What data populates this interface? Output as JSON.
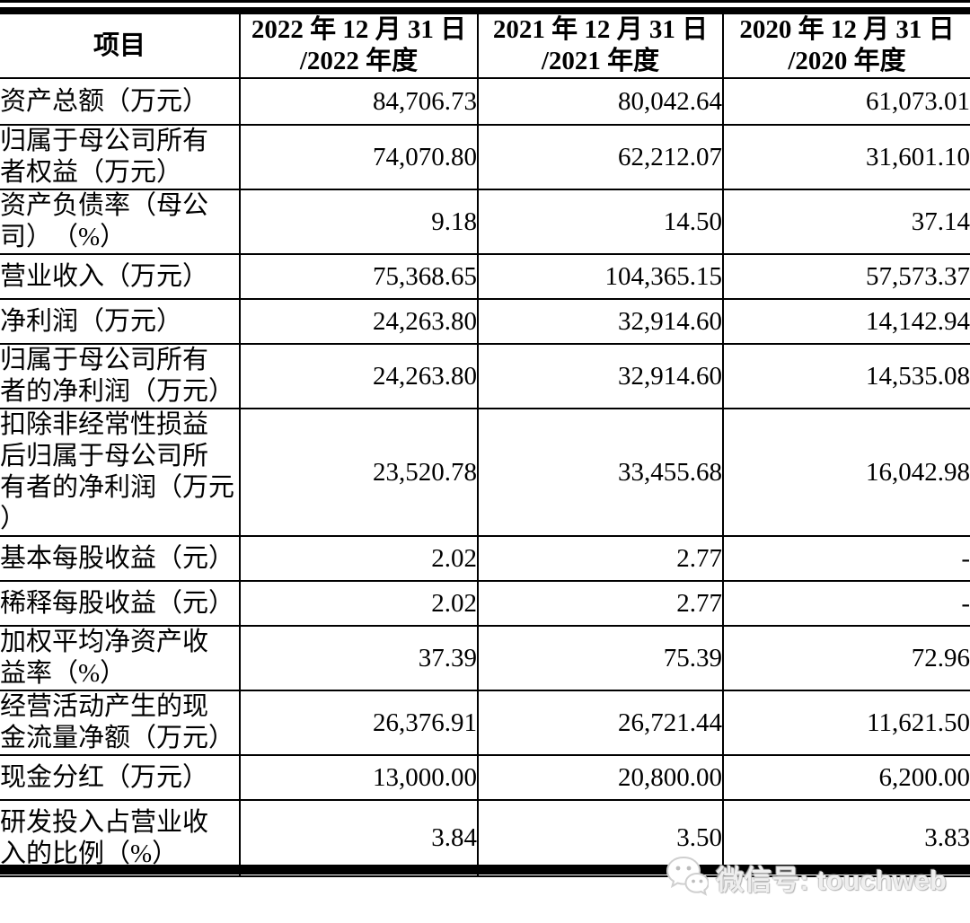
{
  "colors": {
    "background": "#ffffff",
    "border": "#000000",
    "text": "#000000",
    "watermark_gray": "#e8e8e8"
  },
  "table": {
    "header": {
      "item_label": "项目",
      "periods": [
        "2022 年 12 月 31 日\n/2022 年度",
        "2021 年 12 月 31 日\n/2021 年度",
        "2020 年 12 月 31 日\n/2020 年度"
      ]
    },
    "rows": [
      {
        "label": "资产总额（万元）",
        "values": [
          "84,706.73",
          "80,042.64",
          "61,073.01"
        ]
      },
      {
        "label": "归属于母公司所有\n者权益（万元）",
        "values": [
          "74,070.80",
          "62,212.07",
          "31,601.10"
        ]
      },
      {
        "label": "资产负债率（母公\n司）　（%）",
        "values": [
          "9.18",
          "14.50",
          "37.14"
        ]
      },
      {
        "label": "营业收入（万元）",
        "values": [
          "75,368.65",
          "104,365.15",
          "57,573.37"
        ]
      },
      {
        "label": "净利润（万元）",
        "values": [
          "24,263.80",
          "32,914.60",
          "14,142.94"
        ]
      },
      {
        "label": "归属于母公司所有\n者的净利润（万元）",
        "values": [
          "24,263.80",
          "32,914.60",
          "14,535.08"
        ]
      },
      {
        "label": "扣除非经常性损益\n后归属于母公司所\n有者的净利润（万元\n）",
        "values": [
          "23,520.78",
          "33,455.68",
          "16,042.98"
        ]
      },
      {
        "label": "基本每股收益（元）",
        "values": [
          "2.02",
          "2.77",
          "-"
        ]
      },
      {
        "label": "稀释每股收益（元）",
        "values": [
          "2.02",
          "2.77",
          "-"
        ]
      },
      {
        "label": "加权平均净资产收\n益率（%）",
        "values": [
          "37.39",
          "75.39",
          "72.96"
        ]
      },
      {
        "label": "经营活动产生的现\n金流量净额（万元）",
        "values": [
          "26,376.91",
          "26,721.44",
          "11,621.50"
        ]
      },
      {
        "label": "现金分红（万元）",
        "values": [
          "13,000.00",
          "20,800.00",
          "6,200.00"
        ]
      },
      {
        "label": "研发投入占营业收\n入的比例（%）",
        "values": [
          "3.84",
          "3.50",
          "3.83"
        ]
      }
    ]
  },
  "watermark": {
    "icon": "wechat-icon",
    "text": "微信号: touchweb"
  }
}
